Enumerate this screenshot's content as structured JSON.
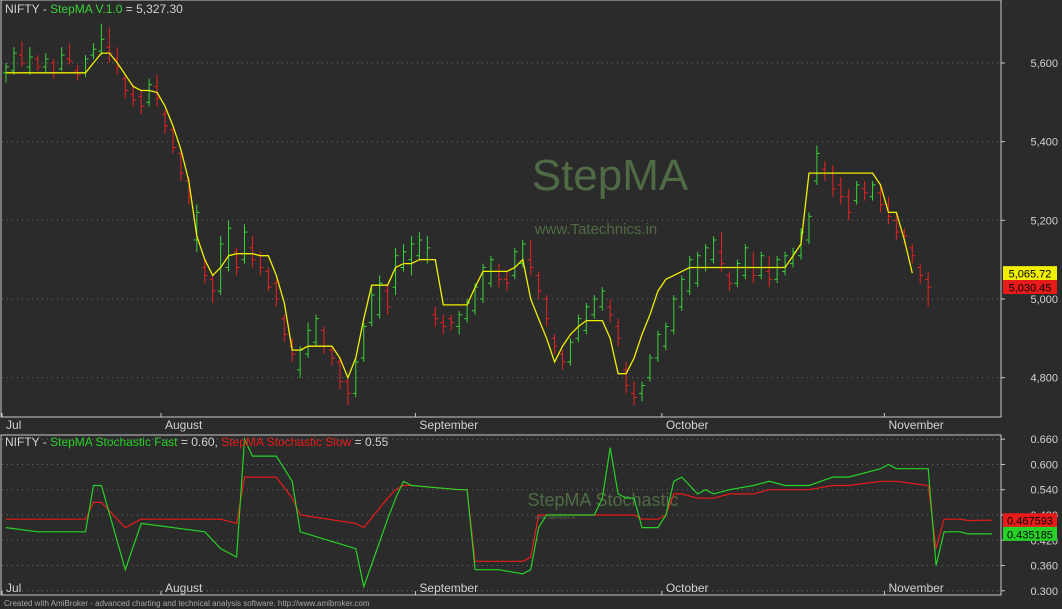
{
  "colors": {
    "background": "#2b2b2b",
    "frame": "#c8c8c8",
    "grid": "#6e6e6e",
    "up_bar": "#3ad23a",
    "down_bar": "#e82020",
    "stepma_line": "#f0f000",
    "stoch_fast": "#27d127",
    "stoch_slow": "#e81b1b",
    "text": "#d2d2d2",
    "watermark": "#4f6a45"
  },
  "footer": "Created with AmiBroker - advanced charting and technical analysis software. http://www.amibroker.com",
  "chart_data": [
    {
      "type": "candlestick",
      "title_parts": [
        {
          "text": "NIFTY - ",
          "color": "#d2d2d2"
        },
        {
          "text": "StepMA V.1.0",
          "color": "#3ad23a"
        },
        {
          "text": " = 5,327.30",
          "color": "#d2d2d2"
        }
      ],
      "watermark": "StepMA",
      "watermark_sub": "www.Tatechnics.in",
      "ylim": [
        4700,
        5760
      ],
      "y_ticks": [
        4800,
        5000,
        5200,
        5400,
        5600
      ],
      "y_tick_labels": [
        "4,800",
        "5,000",
        "5,200",
        "5,400",
        "5,600"
      ],
      "x_labels": [
        {
          "label": "Jul",
          "bar": 0
        },
        {
          "label": "August",
          "bar": 20
        },
        {
          "label": "September",
          "bar": 52
        },
        {
          "label": "October",
          "bar": 83
        },
        {
          "label": "November",
          "bar": 111
        }
      ],
      "value_tags": [
        {
          "label": "5,065.72",
          "value": 5065.72,
          "bg": "#f0f000",
          "fg": "#000000"
        },
        {
          "label": "5,030.45",
          "value": 5030.45,
          "bg": "#e81b1b",
          "fg": "#000000"
        }
      ],
      "stepma_series_name": "StepMA",
      "ohlc": [
        [
          5575,
          5600,
          5550,
          5590
        ],
        [
          5580,
          5640,
          5570,
          5625
        ],
        [
          5620,
          5655,
          5590,
          5600
        ],
        [
          5590,
          5640,
          5570,
          5615
        ],
        [
          5610,
          5620,
          5580,
          5590
        ],
        [
          5590,
          5625,
          5575,
          5610
        ],
        [
          5600,
          5610,
          5560,
          5575
        ],
        [
          5585,
          5640,
          5580,
          5620
        ],
        [
          5610,
          5650,
          5595,
          5605
        ],
        [
          5580,
          5595,
          5555,
          5570
        ],
        [
          5575,
          5620,
          5565,
          5610
        ],
        [
          5620,
          5650,
          5610,
          5635
        ],
        [
          5630,
          5700,
          5620,
          5660
        ],
        [
          5640,
          5690,
          5600,
          5625
        ],
        [
          5610,
          5640,
          5570,
          5590
        ],
        [
          5560,
          5570,
          5510,
          5530
        ],
        [
          5520,
          5545,
          5490,
          5505
        ],
        [
          5515,
          5530,
          5470,
          5490
        ],
        [
          5500,
          5560,
          5490,
          5545
        ],
        [
          5540,
          5570,
          5490,
          5510
        ],
        [
          5470,
          5480,
          5420,
          5440
        ],
        [
          5430,
          5440,
          5370,
          5385
        ],
        [
          5370,
          5380,
          5300,
          5320
        ],
        [
          5300,
          5310,
          5240,
          5260
        ],
        [
          5150,
          5240,
          5120,
          5220
        ],
        [
          5080,
          5100,
          5040,
          5060
        ],
        [
          5050,
          5060,
          4990,
          5020
        ],
        [
          5020,
          5160,
          5010,
          5140
        ],
        [
          5080,
          5200,
          5070,
          5180
        ],
        [
          5120,
          5130,
          5060,
          5080
        ],
        [
          5100,
          5190,
          5090,
          5170
        ],
        [
          5130,
          5160,
          5080,
          5100
        ],
        [
          5110,
          5120,
          5060,
          5080
        ],
        [
          5070,
          5080,
          5020,
          5030
        ],
        [
          5040,
          5050,
          4980,
          5000
        ],
        [
          4950,
          4960,
          4890,
          4910
        ],
        [
          4880,
          4900,
          4840,
          4860
        ],
        [
          4820,
          4880,
          4800,
          4870
        ],
        [
          4860,
          4940,
          4850,
          4920
        ],
        [
          4890,
          4960,
          4880,
          4950
        ],
        [
          4920,
          4930,
          4860,
          4880
        ],
        [
          4870,
          4880,
          4830,
          4850
        ],
        [
          4840,
          4850,
          4770,
          4790
        ],
        [
          4790,
          4800,
          4730,
          4760
        ],
        [
          4760,
          4850,
          4750,
          4840
        ],
        [
          4850,
          4940,
          4840,
          4930
        ],
        [
          4940,
          5030,
          4930,
          5010
        ],
        [
          4960,
          5060,
          4950,
          5040
        ],
        [
          5020,
          5040,
          4960,
          4980
        ],
        [
          5030,
          5130,
          5010,
          5110
        ],
        [
          5080,
          5140,
          5070,
          5120
        ],
        [
          5100,
          5160,
          5060,
          5140
        ],
        [
          5110,
          5170,
          5100,
          5150
        ],
        [
          5100,
          5160,
          5090,
          5130
        ],
        [
          4960,
          4980,
          4930,
          4950
        ],
        [
          4940,
          4960,
          4910,
          4930
        ],
        [
          4950,
          4960,
          4920,
          4940
        ],
        [
          4930,
          4970,
          4910,
          4960
        ],
        [
          4950,
          5000,
          4940,
          4990
        ],
        [
          4970,
          5040,
          4960,
          5030
        ],
        [
          5000,
          5090,
          4990,
          5080
        ],
        [
          5040,
          5110,
          5030,
          5100
        ],
        [
          5070,
          5090,
          5030,
          5050
        ],
        [
          5050,
          5070,
          5020,
          5040
        ],
        [
          5060,
          5130,
          5050,
          5120
        ],
        [
          5090,
          5150,
          5080,
          5140
        ],
        [
          5100,
          5150,
          5060,
          5080
        ],
        [
          5060,
          5070,
          5000,
          5020
        ],
        [
          5000,
          5010,
          4930,
          4950
        ],
        [
          4900,
          4910,
          4860,
          4880
        ],
        [
          4860,
          4870,
          4820,
          4840
        ],
        [
          4840,
          4900,
          4830,
          4890
        ],
        [
          4900,
          4960,
          4890,
          4950
        ],
        [
          4920,
          4990,
          4910,
          4980
        ],
        [
          4960,
          5010,
          4950,
          5000
        ],
        [
          4980,
          5030,
          4970,
          5020
        ],
        [
          4980,
          5000,
          4940,
          4960
        ],
        [
          4930,
          4950,
          4880,
          4900
        ],
        [
          4820,
          4840,
          4760,
          4780
        ],
        [
          4760,
          4790,
          4730,
          4750
        ],
        [
          4760,
          4790,
          4740,
          4780
        ],
        [
          4800,
          4860,
          4790,
          4850
        ],
        [
          4850,
          4920,
          4840,
          4910
        ],
        [
          4880,
          4940,
          4870,
          4930
        ],
        [
          4920,
          5010,
          4910,
          5000
        ],
        [
          4980,
          5060,
          4970,
          5050
        ],
        [
          5020,
          5110,
          5010,
          5100
        ],
        [
          5040,
          5120,
          5030,
          5110
        ],
        [
          5080,
          5140,
          5070,
          5130
        ],
        [
          5100,
          5160,
          5090,
          5150
        ],
        [
          5120,
          5170,
          5070,
          5090
        ],
        [
          5060,
          5070,
          5020,
          5040
        ],
        [
          5040,
          5100,
          5030,
          5090
        ],
        [
          5060,
          5140,
          5050,
          5130
        ],
        [
          5080,
          5120,
          5040,
          5060
        ],
        [
          5060,
          5120,
          5050,
          5110
        ],
        [
          5070,
          5110,
          5030,
          5050
        ],
        [
          5050,
          5110,
          5040,
          5100
        ],
        [
          5070,
          5120,
          5060,
          5110
        ],
        [
          5090,
          5130,
          5080,
          5120
        ],
        [
          5110,
          5180,
          5100,
          5170
        ],
        [
          5150,
          5220,
          5140,
          5210
        ],
        [
          5300,
          5390,
          5290,
          5370
        ],
        [
          5330,
          5350,
          5300,
          5320
        ],
        [
          5320,
          5340,
          5260,
          5280
        ],
        [
          5290,
          5310,
          5240,
          5260
        ],
        [
          5260,
          5280,
          5200,
          5220
        ],
        [
          5250,
          5300,
          5240,
          5290
        ],
        [
          5280,
          5300,
          5250,
          5270
        ],
        [
          5260,
          5300,
          5250,
          5290
        ],
        [
          5270,
          5290,
          5220,
          5240
        ],
        [
          5240,
          5260,
          5190,
          5210
        ],
        [
          5200,
          5220,
          5150,
          5170
        ],
        [
          5170,
          5180,
          5140,
          5160
        ],
        [
          5130,
          5140,
          5090,
          5110
        ],
        [
          5080,
          5090,
          5040,
          5060
        ],
        [
          5050,
          5070,
          4980,
          5030
        ]
      ],
      "stepma": [
        5575,
        5575,
        5575,
        5575,
        5575,
        5575,
        5575,
        5575,
        5575,
        5575,
        5575,
        5600,
        5625,
        5625,
        5600,
        5570,
        5540,
        5530,
        5530,
        5525,
        5490,
        5440,
        5380,
        5300,
        5160,
        5100,
        5060,
        5080,
        5110,
        5115,
        5115,
        5115,
        5110,
        5110,
        5060,
        4990,
        4870,
        4870,
        4880,
        4880,
        4880,
        4880,
        4850,
        4800,
        4850,
        4950,
        5035,
        5035,
        5035,
        5080,
        5090,
        5090,
        5100,
        5100,
        5100,
        4985,
        4985,
        4985,
        4985,
        5030,
        5070,
        5070,
        5070,
        5070,
        5080,
        5100,
        5000,
        4950,
        4900,
        4840,
        4880,
        4910,
        4930,
        4945,
        4945,
        4945,
        4900,
        4810,
        4810,
        4850,
        4910,
        4960,
        5020,
        5050,
        5060,
        5070,
        5080,
        5080,
        5080,
        5080,
        5080,
        5080,
        5080,
        5080,
        5080,
        5080,
        5080,
        5080,
        5080,
        5110,
        5140,
        5320,
        5320,
        5320,
        5320,
        5320,
        5320,
        5320,
        5320,
        5320,
        5290,
        5220,
        5220,
        5150,
        5065.72
      ]
    },
    {
      "type": "line",
      "title_parts": [
        {
          "text": "NIFTY - ",
          "color": "#d2d2d2"
        },
        {
          "text": "StepMA Stochastic Fast",
          "color": "#27d127"
        },
        {
          "text": " = 0.60, ",
          "color": "#d2d2d2"
        },
        {
          "text": "StepMA Stochastic Slow",
          "color": "#e81b1b"
        },
        {
          "text": " = 0.55",
          "color": "#d2d2d2"
        }
      ],
      "watermark": "StepMA Stochastic",
      "watermark_sub": "www.Tatechnics.in",
      "ylim": [
        0.29,
        0.67
      ],
      "y_ticks": [
        0.3,
        0.36,
        0.42,
        0.48,
        0.54,
        0.6,
        0.66
      ],
      "y_tick_labels": [
        "0.300",
        "0.360",
        "0.420",
        "0.480",
        "0.540",
        "0.600",
        "0.660"
      ],
      "x_labels": [
        {
          "label": "Jul",
          "bar": 0
        },
        {
          "label": "August",
          "bar": 20
        },
        {
          "label": "September",
          "bar": 52
        },
        {
          "label": "October",
          "bar": 83
        },
        {
          "label": "November",
          "bar": 111
        }
      ],
      "value_tags": [
        {
          "label": "0.467593",
          "value": 0.467593,
          "bg": "#e81b1b",
          "fg": "#000000"
        },
        {
          "label": "0.435185",
          "value": 0.435185,
          "bg": "#27d127",
          "fg": "#000000"
        }
      ],
      "x": [
        0,
        4,
        10,
        11,
        12,
        15,
        17,
        25,
        27,
        29,
        30,
        31,
        34,
        36,
        37,
        44,
        45,
        48,
        49,
        50,
        51,
        57,
        58,
        59,
        60,
        62,
        65,
        66,
        67,
        68,
        74,
        75,
        76,
        77,
        78,
        79,
        80,
        82,
        83,
        84,
        85,
        87,
        88,
        89,
        91,
        94,
        96,
        98,
        101,
        104,
        106,
        110,
        111,
        112,
        116,
        117,
        118,
        120,
        121,
        124
      ],
      "series": [
        {
          "name": "StepMA Stochastic Fast",
          "values": [
            0.45,
            0.44,
            0.44,
            0.55,
            0.55,
            0.35,
            0.46,
            0.44,
            0.4,
            0.38,
            0.66,
            0.62,
            0.62,
            0.56,
            0.44,
            0.4,
            0.31,
            0.47,
            0.52,
            0.56,
            0.55,
            0.54,
            0.54,
            0.35,
            0.35,
            0.35,
            0.34,
            0.35,
            0.45,
            0.48,
            0.48,
            0.52,
            0.64,
            0.53,
            0.52,
            0.52,
            0.45,
            0.45,
            0.48,
            0.56,
            0.57,
            0.53,
            0.54,
            0.53,
            0.54,
            0.55,
            0.56,
            0.55,
            0.55,
            0.57,
            0.57,
            0.59,
            0.6,
            0.59,
            0.59,
            0.36,
            0.44,
            0.44,
            0.435,
            0.435185
          ]
        },
        {
          "name": "StepMA Stochastic Slow",
          "values": [
            0.47,
            0.47,
            0.47,
            0.51,
            0.51,
            0.45,
            0.47,
            0.47,
            0.47,
            0.46,
            0.57,
            0.57,
            0.57,
            0.52,
            0.48,
            0.46,
            0.45,
            0.52,
            0.54,
            0.55,
            0.55,
            0.54,
            0.54,
            0.37,
            0.37,
            0.37,
            0.37,
            0.38,
            0.48,
            0.48,
            0.48,
            0.48,
            0.48,
            0.48,
            0.48,
            0.48,
            0.47,
            0.47,
            0.48,
            0.53,
            0.53,
            0.52,
            0.52,
            0.52,
            0.53,
            0.53,
            0.54,
            0.54,
            0.54,
            0.55,
            0.55,
            0.56,
            0.56,
            0.56,
            0.55,
            0.4,
            0.47,
            0.47,
            0.467,
            0.467593
          ]
        }
      ]
    }
  ]
}
